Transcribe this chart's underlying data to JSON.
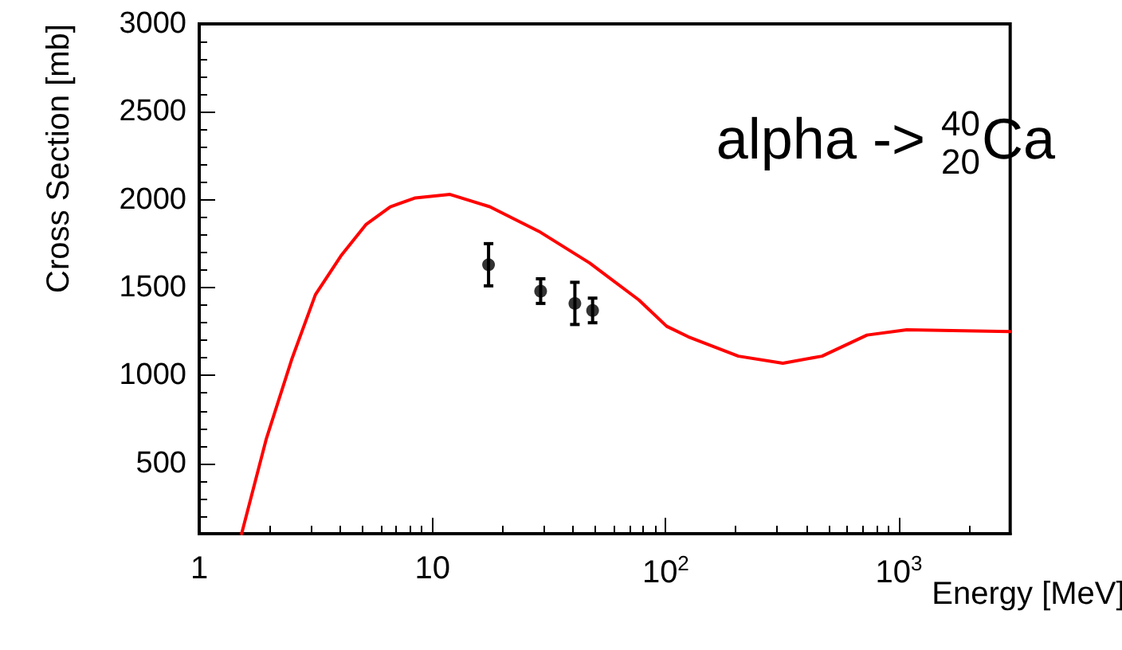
{
  "chart_data": {
    "type": "line",
    "xlabel": "Energy [MeV]",
    "ylabel": "Cross Section [mb]",
    "annotations": [
      "alpha -> $^{40}$$_{20}$Ca"
    ],
    "log": "x",
    "grid": false,
    "xlim": [
      1,
      3000
    ],
    "xticks": [
      1,
      10,
      {
        "value": 100,
        "label": "10$^{2}$"
      },
      {
        "value": 1000,
        "label": "10$^{3}$"
      }
    ],
    "ylim": [
      100,
      3000
    ],
    "yticks": [
      500,
      1000,
      1500,
      2000,
      2500,
      3000
    ],
    "series": [
      {
        "color": "#ff0000",
        "marker": "none",
        "line_style": "solid",
        "x": [
          1.52,
          1.94,
          2.49,
          3.15,
          4.05,
          5.2,
          6.6,
          8.45,
          11.9,
          17.6,
          28.6,
          47.2,
          76.7,
          101,
          125,
          205,
          318,
          468,
          730,
          1080,
          3000
        ],
        "values": [
          100,
          640,
          1090,
          1460,
          1680,
          1860,
          1960,
          2010,
          2030,
          1960,
          1820,
          1640,
          1430,
          1280,
          1220,
          1110,
          1070,
          1110,
          1230,
          1260,
          1250
        ]
      },
      {
        "type": "scatter",
        "color": "#000000",
        "marker": "circle",
        "x": [
          17.4,
          29.1,
          40.8,
          48.6
        ],
        "values": [
          1630,
          1480,
          1410,
          1370
        ],
        "errors": [
          120,
          70,
          120,
          70
        ]
      }
    ]
  }
}
